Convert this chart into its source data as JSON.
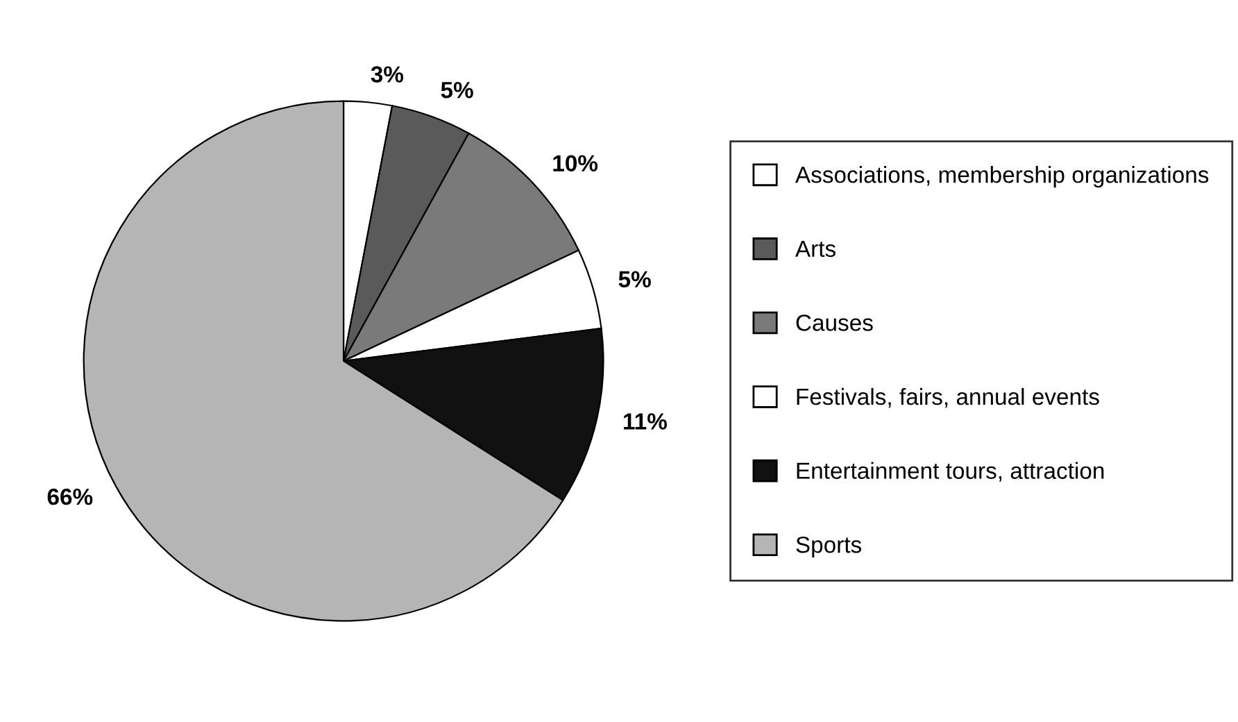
{
  "chart_data": {
    "type": "pie",
    "categories": [
      "Associations, membership organizations",
      "Arts",
      "Causes",
      "Festivals, fairs, annual events",
      "Entertainment tours, attraction",
      "Sports"
    ],
    "values": [
      3,
      5,
      10,
      5,
      11,
      66
    ],
    "value_labels": [
      "3%",
      "5%",
      "10%",
      "5%",
      "11%",
      "66%"
    ],
    "colors": [
      "#ffffff",
      "#5a5a5a",
      "#7a7a7a",
      "#ffffff",
      "#111111",
      "#b5b5b5"
    ],
    "legend": "right"
  }
}
